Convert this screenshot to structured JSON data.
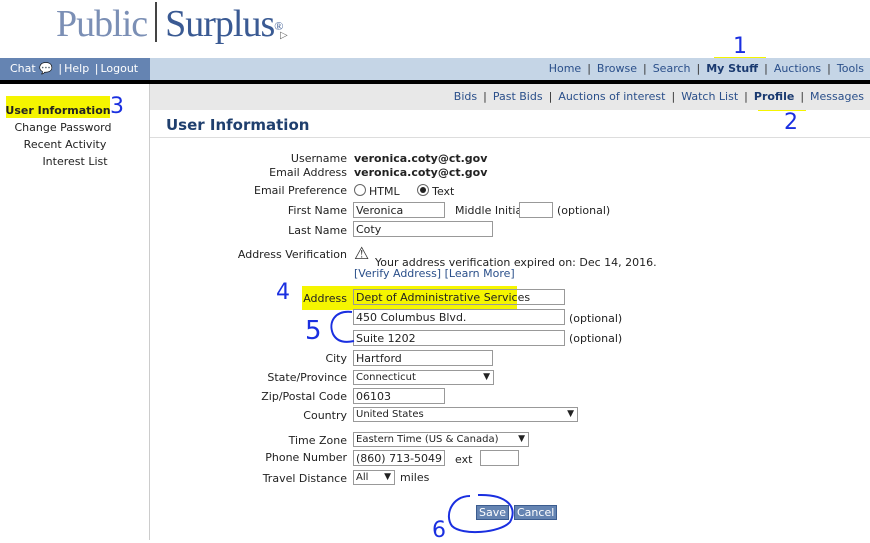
{
  "logo": {
    "part1": "Public",
    "part2": "Surplus",
    "reg": "®"
  },
  "topnav_left": {
    "chat": "Chat",
    "help": "Help",
    "logout": "Logout"
  },
  "topnav": [
    "Home",
    "Browse",
    "Search",
    "My Stuff",
    "Auctions",
    "Tools"
  ],
  "subnav": [
    "Bids",
    "Past Bids",
    "Auctions of interest",
    "Watch List",
    "Profile",
    "Messages"
  ],
  "sidebar": [
    "User Information",
    "Change Password",
    "Recent Activity",
    "Interest List"
  ],
  "page_title": "User Information",
  "form": {
    "username_label": "Username",
    "username": "veronica.coty@ct.gov",
    "email_label": "Email Address",
    "email": "veronica.coty@ct.gov",
    "pref_label": "Email Preference",
    "pref_html": "HTML",
    "pref_text": "Text",
    "pref_selected": "Text",
    "first_label": "First Name",
    "first": "Veronica",
    "mi_label": "Middle Initial",
    "mi": "",
    "optional": "(optional)",
    "last_label": "Last Name",
    "last": "Coty",
    "verif_label": "Address Verification",
    "verif_msg": "Your address verification expired on: Dec 14, 2016.",
    "verify_link": "[Verify Address]",
    "learn_link": "[Learn More]",
    "address_label": "Address",
    "address1": "Dept of Administrative Services",
    "address2": "450 Columbus Blvd.",
    "address3": "Suite 1202",
    "city_label": "City",
    "city": "Hartford",
    "state_label": "State/Province",
    "state": "Connecticut",
    "zip_label": "Zip/Postal Code",
    "zip": "06103",
    "country_label": "Country",
    "country": "United States",
    "tz_label": "Time Zone",
    "tz": "Eastern Time (US & Canada)",
    "phone_label": "Phone Number",
    "phone": "(860) 713-5049",
    "ext_label": "ext",
    "ext": "",
    "travel_label": "Travel Distance",
    "travel": "All",
    "miles": "miles",
    "save": "Save",
    "cancel": "Cancel"
  },
  "annotations": [
    "1",
    "2",
    "3",
    "4",
    "5",
    "6"
  ],
  "colors": {
    "nav_dark": "#6584b2",
    "nav_light": "#c5d5e6",
    "highlight": "#f5f500",
    "annotation": "#1a2fe0"
  }
}
